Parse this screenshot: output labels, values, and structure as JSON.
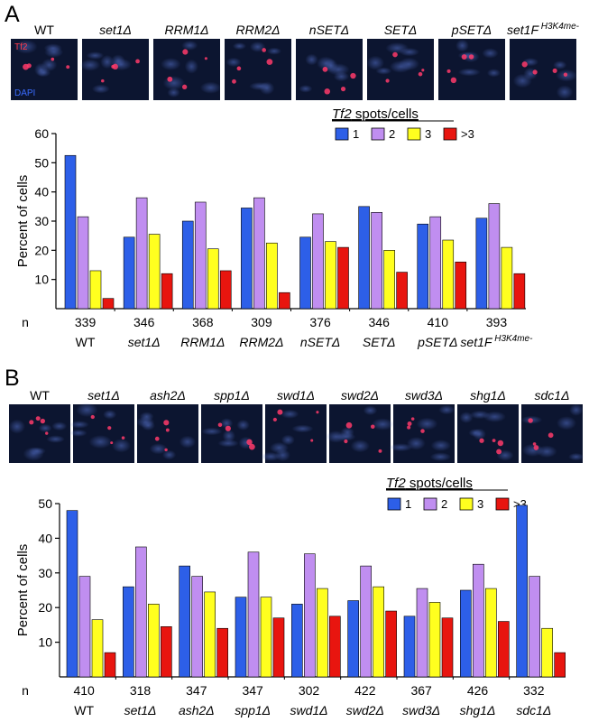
{
  "legend_title_italic": "Tf2",
  "legend_title_rest": " spots/cells",
  "n_label": "n",
  "y_axis_label": "Percent of cells",
  "legend": [
    {
      "label": "1",
      "color": "#2d5fe8"
    },
    {
      "label": "2",
      "color": "#c08ef0"
    },
    {
      "label": "3",
      "color": "#ffff1f"
    },
    {
      "label": ">3",
      "color": "#e8150f"
    }
  ],
  "panels": [
    {
      "letter": "A",
      "micrograph_labels": {
        "top": "Tf2",
        "bottom": "DAPI",
        "top_color": "#ff3a4a",
        "bottom_color": "#3a6cff"
      },
      "strains": [
        {
          "name": "WT",
          "italic": false,
          "sup": ""
        },
        {
          "name": "set1Δ",
          "italic": true,
          "sup": ""
        },
        {
          "name": "RRM1Δ",
          "italic": true,
          "sup": ""
        },
        {
          "name": "RRM2Δ",
          "italic": true,
          "sup": ""
        },
        {
          "name": "nSETΔ",
          "italic": true,
          "sup": ""
        },
        {
          "name": "SETΔ",
          "italic": true,
          "sup": ""
        },
        {
          "name": "pSETΔ",
          "italic": true,
          "sup": ""
        },
        {
          "name": "set1F",
          "italic": true,
          "sup": "H3K4me-"
        }
      ],
      "n_values": [
        "339",
        "346",
        "368",
        "309",
        "376",
        "346",
        "410",
        "393"
      ]
    },
    {
      "letter": "B",
      "strains": [
        {
          "name": "WT",
          "italic": false,
          "sup": ""
        },
        {
          "name": "set1Δ",
          "italic": true,
          "sup": ""
        },
        {
          "name": "ash2Δ",
          "italic": true,
          "sup": ""
        },
        {
          "name": "spp1Δ",
          "italic": true,
          "sup": ""
        },
        {
          "name": "swd1Δ",
          "italic": true,
          "sup": ""
        },
        {
          "name": "swd2Δ",
          "italic": true,
          "sup": ""
        },
        {
          "name": "swd3Δ",
          "italic": true,
          "sup": ""
        },
        {
          "name": "shg1Δ",
          "italic": true,
          "sup": ""
        },
        {
          "name": "sdc1Δ",
          "italic": true,
          "sup": ""
        }
      ],
      "n_values": [
        "410",
        "318",
        "347",
        "347",
        "302",
        "422",
        "367",
        "426",
        "332"
      ]
    }
  ],
  "chart_data": [
    {
      "type": "bar",
      "categories": [
        "WT",
        "set1Δ",
        "RRM1Δ",
        "RRM2Δ",
        "nSETΔ",
        "SETΔ",
        "pSETΔ",
        "set1F H3K4me-"
      ],
      "series": [
        {
          "name": "1",
          "values": [
            52.5,
            24.5,
            30,
            34.5,
            24.5,
            35,
            29,
            31
          ]
        },
        {
          "name": "2",
          "values": [
            31.5,
            38,
            36.5,
            38,
            32.5,
            33,
            31.5,
            36
          ]
        },
        {
          "name": "3",
          "values": [
            13,
            25.5,
            20.5,
            22.5,
            23,
            20,
            23.5,
            21
          ]
        },
        {
          "name": ">3",
          "values": [
            3.5,
            12,
            13,
            5.5,
            21,
            12.5,
            16,
            12
          ]
        }
      ],
      "ylabel": "Percent of cells",
      "ylim": [
        0,
        60
      ],
      "yticks": [
        10,
        20,
        30,
        40,
        50,
        60
      ],
      "legend_position": "top-right"
    },
    {
      "type": "bar",
      "categories": [
        "WT",
        "set1Δ",
        "ash2Δ",
        "spp1Δ",
        "swd1Δ",
        "swd2Δ",
        "swd3Δ",
        "shg1Δ",
        "sdc1Δ"
      ],
      "series": [
        {
          "name": "1",
          "values": [
            48,
            26,
            32,
            23,
            21,
            22,
            17.5,
            25,
            49.5
          ]
        },
        {
          "name": "2",
          "values": [
            29,
            37.5,
            29,
            36,
            35.5,
            32,
            25.5,
            32.5,
            29
          ]
        },
        {
          "name": "3",
          "values": [
            16.5,
            21,
            24.5,
            23,
            25.5,
            26,
            21.5,
            25.5,
            14
          ]
        },
        {
          "name": ">3",
          "values": [
            7,
            14.5,
            14,
            17,
            17.5,
            19,
            17,
            16,
            7
          ]
        }
      ],
      "ylabel": "Percent of cells",
      "ylim": [
        0,
        50
      ],
      "yticks": [
        10,
        20,
        30,
        40,
        50
      ],
      "legend_position": "top-right"
    }
  ]
}
